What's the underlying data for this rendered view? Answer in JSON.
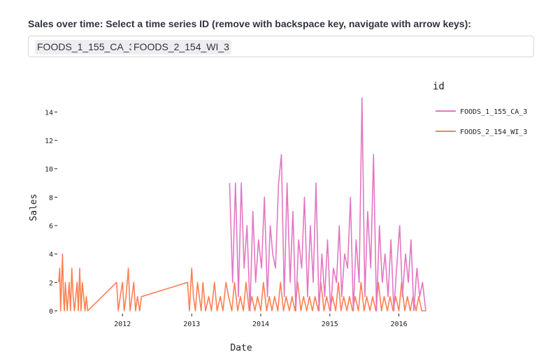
{
  "selector": {
    "label": "Sales over time: Select a time series ID (remove with backspace key, navigate with arrow keys):",
    "selected": [
      "FOODS_1_155_CA_3",
      "FOODS_2_154_WI_3"
    ]
  },
  "chart_data": {
    "type": "line",
    "xlabel": "Date",
    "ylabel": "Sales",
    "legend_title": "id",
    "legend_position": "top-right",
    "grid": false,
    "xlim": [
      "2011-01-29",
      "2016-05-22"
    ],
    "ylim": [
      0,
      15
    ],
    "x_ticks": [
      "2012",
      "2013",
      "2014",
      "2015",
      "2016"
    ],
    "y_ticks": [
      0,
      2,
      4,
      6,
      8,
      10,
      12,
      14
    ],
    "series": [
      {
        "name": "FOODS_1_155_CA_3",
        "color": "#e377c2",
        "x": [
          "2013-07-20",
          "2013-08-05",
          "2013-08-20",
          "2013-09-05",
          "2013-09-20",
          "2013-10-05",
          "2013-10-20",
          "2013-11-05",
          "2013-11-20",
          "2013-12-05",
          "2013-12-20",
          "2014-01-05",
          "2014-01-20",
          "2014-02-05",
          "2014-02-20",
          "2014-03-05",
          "2014-03-20",
          "2014-04-05",
          "2014-04-20",
          "2014-05-05",
          "2014-05-20",
          "2014-06-05",
          "2014-06-20",
          "2014-07-05",
          "2014-07-20",
          "2014-08-05",
          "2014-08-20",
          "2014-09-05",
          "2014-09-20",
          "2014-10-05",
          "2014-10-20",
          "2014-11-05",
          "2014-11-20",
          "2014-12-05",
          "2014-12-20",
          "2015-01-05",
          "2015-01-20",
          "2015-02-05",
          "2015-02-20",
          "2015-03-05",
          "2015-03-20",
          "2015-04-05",
          "2015-04-20",
          "2015-05-05",
          "2015-05-20",
          "2015-06-05",
          "2015-06-20",
          "2015-07-05",
          "2015-07-20",
          "2015-08-05",
          "2015-08-20",
          "2015-09-05",
          "2015-09-20",
          "2015-10-05",
          "2015-10-20",
          "2015-11-05",
          "2015-11-20",
          "2015-12-05",
          "2015-12-20",
          "2016-01-05",
          "2016-01-20",
          "2016-02-05",
          "2016-02-20",
          "2016-03-05",
          "2016-03-20",
          "2016-04-05",
          "2016-04-20",
          "2016-05-05",
          "2016-05-22"
        ],
        "y": [
          9,
          2,
          9,
          1,
          9,
          3,
          6,
          0,
          7,
          2,
          5,
          3,
          8,
          1,
          6,
          4,
          3,
          9,
          11,
          1,
          9,
          2,
          7,
          0,
          5,
          3,
          8,
          1,
          6,
          2,
          9,
          0,
          4,
          1,
          5,
          0,
          3,
          2,
          6,
          1,
          4,
          3,
          8,
          0,
          5,
          2,
          15,
          1,
          7,
          3,
          11,
          0,
          6,
          2,
          4,
          1,
          5,
          0,
          3,
          6,
          1,
          4,
          2,
          5,
          0,
          3,
          1,
          2,
          0
        ]
      },
      {
        "name": "FOODS_2_154_WI_3",
        "color": "#ff7f50",
        "x": [
          "2011-01-29",
          "2011-02-03",
          "2011-02-08",
          "2011-02-13",
          "2011-02-18",
          "2011-02-23",
          "2011-02-28",
          "2011-03-05",
          "2011-03-10",
          "2011-03-15",
          "2011-03-20",
          "2011-03-25",
          "2011-04-01",
          "2011-04-08",
          "2011-04-15",
          "2011-04-22",
          "2011-04-29",
          "2011-05-06",
          "2011-05-13",
          "2011-05-20",
          "2011-05-27",
          "2011-06-03",
          "2011-06-10",
          "2011-06-17",
          "2011-06-24",
          "2011-07-01",
          "2011-12-01",
          "2011-12-10",
          "2011-12-20",
          "2012-01-01",
          "2012-01-10",
          "2012-01-20",
          "2012-02-01",
          "2012-02-10",
          "2012-02-20",
          "2012-03-01",
          "2012-03-10",
          "2012-03-20",
          "2012-04-01",
          "2012-04-10",
          "2012-12-10",
          "2012-12-20",
          "2013-01-01",
          "2013-01-10",
          "2013-01-20",
          "2013-02-01",
          "2013-02-10",
          "2013-02-20",
          "2013-03-01",
          "2013-03-15",
          "2013-04-01",
          "2013-04-15",
          "2013-05-01",
          "2013-05-15",
          "2013-06-01",
          "2013-06-15",
          "2013-07-01",
          "2013-07-15",
          "2013-08-01",
          "2013-08-15",
          "2013-09-01",
          "2013-09-15",
          "2013-10-01",
          "2013-10-15",
          "2013-11-01",
          "2013-11-15",
          "2013-12-01",
          "2013-12-15",
          "2014-01-01",
          "2014-01-15",
          "2014-02-01",
          "2014-02-15",
          "2014-03-01",
          "2014-03-15",
          "2014-04-01",
          "2014-04-15",
          "2014-05-01",
          "2014-05-15",
          "2014-06-01",
          "2014-06-15",
          "2014-07-01",
          "2014-07-15",
          "2014-08-01",
          "2014-08-15",
          "2014-09-01",
          "2014-09-15",
          "2014-10-01",
          "2014-10-15",
          "2014-11-01",
          "2014-11-15",
          "2014-12-01",
          "2014-12-15",
          "2015-01-01",
          "2015-01-15",
          "2015-02-01",
          "2015-02-15",
          "2015-03-01",
          "2015-03-15",
          "2015-04-01",
          "2015-04-15",
          "2015-05-01",
          "2015-05-15",
          "2015-06-01",
          "2015-06-15",
          "2015-07-01",
          "2015-07-15",
          "2015-08-01",
          "2015-08-15",
          "2015-09-01",
          "2015-09-15",
          "2015-10-01",
          "2015-10-15",
          "2015-11-01",
          "2015-11-15",
          "2015-12-01",
          "2015-12-15",
          "2016-01-01",
          "2016-01-15",
          "2016-02-01",
          "2016-02-15",
          "2016-03-01",
          "2016-03-15",
          "2016-04-01",
          "2016-04-15",
          "2016-05-01",
          "2016-05-22"
        ],
        "y": [
          2,
          3,
          0,
          2,
          4,
          1,
          0,
          2,
          1,
          0,
          1,
          2,
          0,
          3,
          1,
          0,
          1,
          2,
          0,
          3,
          0,
          2,
          1,
          0,
          1,
          0,
          2,
          0,
          1,
          2,
          0,
          1,
          3,
          0,
          1,
          2,
          0,
          1,
          0,
          1,
          2,
          0,
          3,
          1,
          0,
          2,
          1,
          0,
          2,
          0,
          1,
          0,
          2,
          0,
          1,
          0,
          2,
          1,
          0,
          2,
          0,
          1,
          0,
          2,
          0,
          1,
          0,
          1,
          0,
          2,
          0,
          1,
          0,
          1,
          0,
          2,
          0,
          1,
          0,
          1,
          0,
          2,
          0,
          1,
          0,
          1,
          0,
          1,
          0,
          2,
          0,
          1,
          0,
          1,
          0,
          2,
          0,
          1,
          0,
          1,
          0,
          1,
          0,
          2,
          0,
          1,
          0,
          1,
          0,
          2,
          0,
          1,
          0,
          1,
          0,
          1,
          0,
          2,
          0,
          1,
          0,
          1,
          0,
          1,
          0,
          0
        ]
      }
    ]
  }
}
